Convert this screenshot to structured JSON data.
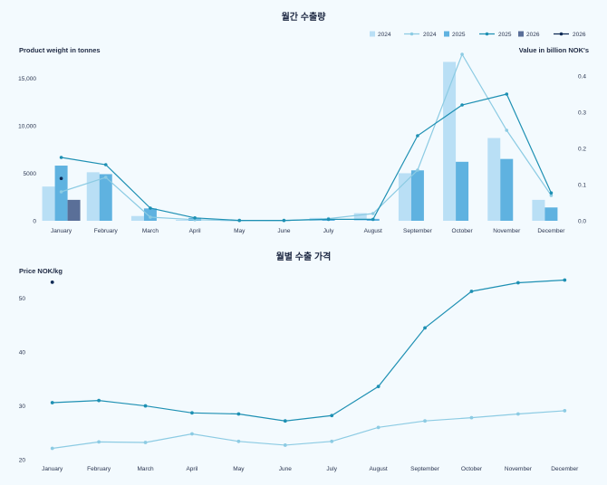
{
  "chart_data": [
    {
      "type": "bar",
      "title": "월간 수출량",
      "ylabel": "Product weight in tonnes",
      "y2label": "Value in billion NOK's",
      "categories": [
        "January",
        "February",
        "March",
        "April",
        "May",
        "June",
        "July",
        "August",
        "September",
        "October",
        "November",
        "December"
      ],
      "ylim": [
        0,
        17500
      ],
      "yticks": [
        0,
        5000,
        10000,
        15000
      ],
      "ytick_labels": [
        "0",
        "5000",
        "10,000",
        "15,000"
      ],
      "y2lim": [
        0,
        0.46
      ],
      "y2ticks": [
        0,
        0.1,
        0.2,
        0.3,
        0.4
      ],
      "y2tick_labels": [
        "0.0",
        "0.1",
        "0.2",
        "0.3",
        "0.4"
      ],
      "legend": [
        "2024",
        "2024",
        "2025",
        "2025",
        "2026",
        "2026"
      ],
      "legend_position": "top-right",
      "bar_series": [
        {
          "name": "2024",
          "color": "#b9dff5",
          "values": [
            3600,
            5100,
            500,
            100,
            20,
            20,
            300,
            800,
            5000,
            16700,
            8700,
            2200
          ]
        },
        {
          "name": "2025",
          "color": "#5fb2e0",
          "values": [
            5800,
            4900,
            1300,
            300,
            30,
            30,
            150,
            200,
            5300,
            6200,
            6500,
            1400
          ]
        },
        {
          "name": "2026",
          "color": "#5a6f98",
          "values": [
            2200,
            null,
            null,
            null,
            null,
            null,
            null,
            null,
            null,
            null,
            null,
            null
          ]
        }
      ],
      "line_series": [
        {
          "name": "2024",
          "color": "#8ccbe3",
          "values": [
            0.08,
            0.12,
            0.01,
            0.003,
            0.0005,
            0.0005,
            0.006,
            0.02,
            0.14,
            0.46,
            0.25,
            0.07
          ]
        },
        {
          "name": "2025",
          "color": "#1e90b3",
          "values": [
            0.175,
            0.155,
            0.035,
            0.008,
            0.001,
            0.001,
            0.004,
            0.004,
            0.235,
            0.32,
            0.35,
            0.077
          ]
        },
        {
          "name": "2026",
          "color": "#0e2a55",
          "values": [
            0.117,
            null,
            null,
            null,
            null,
            null,
            null,
            null,
            null,
            null,
            null,
            null
          ]
        }
      ]
    },
    {
      "type": "line",
      "title": "월별 수출 가격",
      "ylabel": "Price NOK/kg",
      "categories": [
        "January",
        "February",
        "March",
        "April",
        "May",
        "June",
        "July",
        "August",
        "September",
        "October",
        "November",
        "December"
      ],
      "ylim": [
        20,
        55
      ],
      "yticks": [
        20,
        30,
        40,
        50
      ],
      "series": [
        {
          "name": "2024",
          "color": "#8ccbe3",
          "values": [
            22.1,
            23.3,
            23.2,
            24.8,
            23.4,
            22.7,
            23.4,
            26.0,
            27.2,
            27.8,
            28.5,
            29.1
          ]
        },
        {
          "name": "2025",
          "color": "#1e90b3",
          "values": [
            30.6,
            31.0,
            30.0,
            28.7,
            28.5,
            27.2,
            28.2,
            33.6,
            44.5,
            51.3,
            52.9,
            53.4
          ]
        },
        {
          "name": "2026",
          "color": "#0e2a55",
          "values": [
            53.0,
            null,
            null,
            null,
            null,
            null,
            null,
            null,
            null,
            null,
            null,
            null
          ]
        }
      ]
    }
  ]
}
